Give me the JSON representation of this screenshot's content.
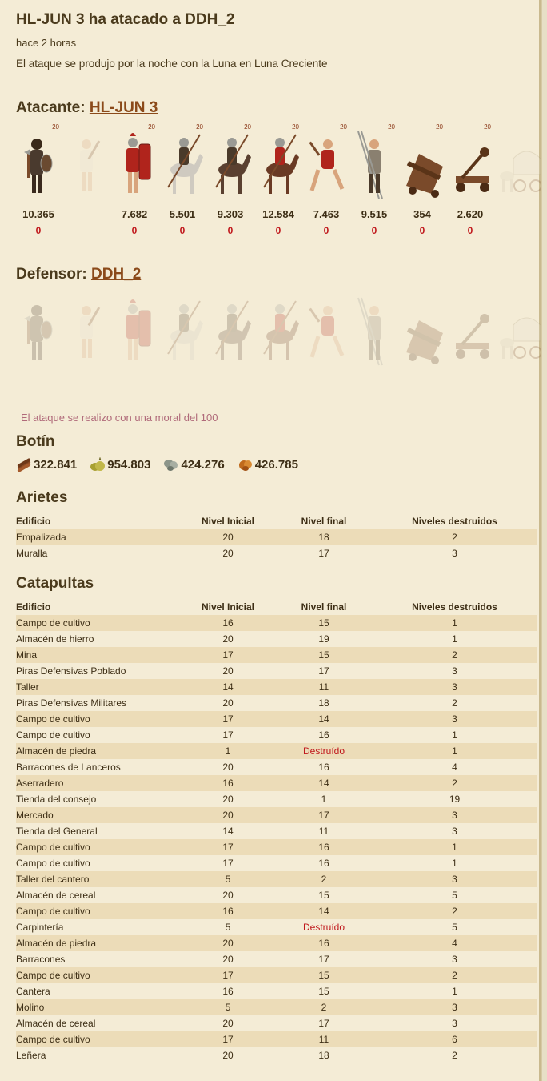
{
  "report": {
    "title": "HL-JUN 3 ha atacado a DDH_2",
    "time": "hace 2 horas",
    "night_text": "El ataque se produjo por la noche con la Luna en Luna Creciente"
  },
  "attacker": {
    "label": "Atacante:",
    "name": "HL-JUN 3",
    "units": [
      {
        "icon": "axeman-unit-icon",
        "level": "20",
        "count": "10.365",
        "loss": "0",
        "faded": false
      },
      {
        "icon": "worker-unit-icon",
        "level": "",
        "count": "",
        "loss": "",
        "faded": true
      },
      {
        "icon": "swordsman-unit-icon",
        "level": "20",
        "count": "7.682",
        "loss": "0",
        "faded": false
      },
      {
        "icon": "light-cavalry-unit-icon",
        "level": "20",
        "count": "5.501",
        "loss": "0",
        "faded": false
      },
      {
        "icon": "spear-cavalry-unit-icon",
        "level": "20",
        "count": "9.303",
        "loss": "0",
        "faded": false
      },
      {
        "icon": "heavy-cavalry-unit-icon",
        "level": "20",
        "count": "12.584",
        "loss": "0",
        "faded": false
      },
      {
        "icon": "captain-unit-icon",
        "level": "20",
        "count": "7.463",
        "loss": "0",
        "faded": false
      },
      {
        "icon": "pikeman-unit-icon",
        "level": "20",
        "count": "9.515",
        "loss": "0",
        "faded": false
      },
      {
        "icon": "ram-unit-icon",
        "level": "20",
        "count": "354",
        "loss": "0",
        "faded": false
      },
      {
        "icon": "catapult-unit-icon",
        "level": "20",
        "count": "2.620",
        "loss": "0",
        "faded": false
      },
      {
        "icon": "wagon-unit-icon",
        "level": "",
        "count": "",
        "loss": "",
        "faded": true
      }
    ]
  },
  "defender": {
    "label": "Defensor:",
    "name": "DDH_2",
    "units": [
      {
        "icon": "axeman-unit-icon"
      },
      {
        "icon": "worker-unit-icon"
      },
      {
        "icon": "swordsman-unit-icon"
      },
      {
        "icon": "light-cavalry-unit-icon"
      },
      {
        "icon": "spear-cavalry-unit-icon"
      },
      {
        "icon": "heavy-cavalry-unit-icon"
      },
      {
        "icon": "captain-unit-icon"
      },
      {
        "icon": "pikeman-unit-icon"
      },
      {
        "icon": "ram-unit-icon"
      },
      {
        "icon": "catapult-unit-icon"
      },
      {
        "icon": "wagon-unit-icon"
      }
    ]
  },
  "morale_text": "El ataque se realizo con una moral del 100",
  "loot": {
    "title": "Botín",
    "wood": "322.841",
    "food": "954.803",
    "stone": "424.276",
    "iron": "426.785"
  },
  "columns": {
    "building": "Edificio",
    "initial": "Nivel Inicial",
    "final": "Nivel final",
    "destroyed": "Niveles destruidos"
  },
  "rams": {
    "title": "Arietes",
    "rows": [
      {
        "b": "Empalizada",
        "i": "20",
        "f": "18",
        "d": "2"
      },
      {
        "b": "Muralla",
        "i": "20",
        "f": "17",
        "d": "3"
      }
    ]
  },
  "catapults": {
    "title": "Catapultas",
    "rows": [
      {
        "b": "Campo de cultivo",
        "i": "16",
        "f": "15",
        "d": "1"
      },
      {
        "b": "Almacén de hierro",
        "i": "20",
        "f": "19",
        "d": "1"
      },
      {
        "b": "Mina",
        "i": "17",
        "f": "15",
        "d": "2"
      },
      {
        "b": "Piras Defensivas Poblado",
        "i": "20",
        "f": "17",
        "d": "3"
      },
      {
        "b": "Taller",
        "i": "14",
        "f": "11",
        "d": "3"
      },
      {
        "b": "Piras Defensivas Militares",
        "i": "20",
        "f": "18",
        "d": "2"
      },
      {
        "b": "Campo de cultivo",
        "i": "17",
        "f": "14",
        "d": "3"
      },
      {
        "b": "Campo de cultivo",
        "i": "17",
        "f": "16",
        "d": "1"
      },
      {
        "b": "Almacén de piedra",
        "i": "1",
        "f": "Destruído",
        "d": "1"
      },
      {
        "b": "Barracones de Lanceros",
        "i": "20",
        "f": "16",
        "d": "4"
      },
      {
        "b": "Aserradero",
        "i": "16",
        "f": "14",
        "d": "2"
      },
      {
        "b": "Tienda del consejo",
        "i": "20",
        "f": "1",
        "d": "19"
      },
      {
        "b": "Mercado",
        "i": "20",
        "f": "17",
        "d": "3"
      },
      {
        "b": "Tienda del General",
        "i": "14",
        "f": "11",
        "d": "3"
      },
      {
        "b": "Campo de cultivo",
        "i": "17",
        "f": "16",
        "d": "1"
      },
      {
        "b": "Campo de cultivo",
        "i": "17",
        "f": "16",
        "d": "1"
      },
      {
        "b": "Taller del cantero",
        "i": "5",
        "f": "2",
        "d": "3"
      },
      {
        "b": "Almacén de cereal",
        "i": "20",
        "f": "15",
        "d": "5"
      },
      {
        "b": "Campo de cultivo",
        "i": "16",
        "f": "14",
        "d": "2"
      },
      {
        "b": "Carpintería",
        "i": "5",
        "f": "Destruído",
        "d": "5"
      },
      {
        "b": "Almacén de piedra",
        "i": "20",
        "f": "16",
        "d": "4"
      },
      {
        "b": "Barracones",
        "i": "20",
        "f": "17",
        "d": "3"
      },
      {
        "b": "Campo de cultivo",
        "i": "17",
        "f": "15",
        "d": "2"
      },
      {
        "b": "Cantera",
        "i": "16",
        "f": "15",
        "d": "1"
      },
      {
        "b": "Molino",
        "i": "5",
        "f": "2",
        "d": "3"
      },
      {
        "b": "Almacén de cereal",
        "i": "20",
        "f": "17",
        "d": "3"
      },
      {
        "b": "Campo de cultivo",
        "i": "17",
        "f": "11",
        "d": "6"
      },
      {
        "b": "Leñera",
        "i": "20",
        "f": "18",
        "d": "2"
      }
    ]
  },
  "colors": {
    "accent": "#8b4a1a",
    "loss": "#c0181c",
    "row_alt": "#ecdcb8",
    "background": "#f4ecd6"
  }
}
